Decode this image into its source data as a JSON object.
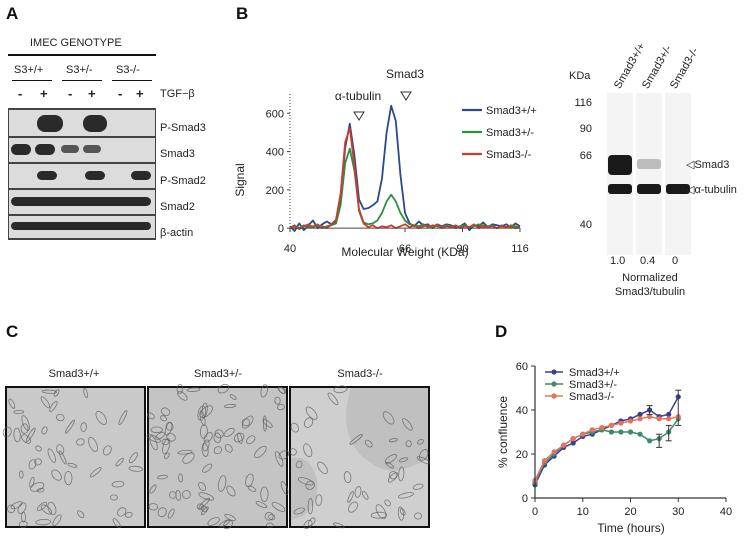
{
  "panels": {
    "a": "A",
    "b": "B",
    "c": "C",
    "d": "D"
  },
  "panel_a": {
    "header": "IMEC GENOTYPE",
    "genotypes": [
      "S3+/+",
      "S3+/-",
      "S3-/-"
    ],
    "treatment_label": "TGF−β",
    "treatment_signs": [
      "-",
      "+",
      "-",
      "+",
      "-",
      "+"
    ],
    "rows": [
      "P-Smad3",
      "Smad3",
      "P-Smad2",
      "Smad2",
      "β-actin"
    ]
  },
  "panel_b_gel": {
    "kda_label": "KDa",
    "markers": [
      "116",
      "90",
      "66",
      "40"
    ],
    "lanes": [
      "Smad3+/+",
      "Smad3+/-",
      "Smad3-/-"
    ],
    "band_labels": [
      "◁Smad3",
      "◁α-tubulin"
    ],
    "ratios": [
      "1.0",
      "0.4",
      "0"
    ],
    "ratio_caption_line1": "Normalized",
    "ratio_caption_line2": "Smad3/tubulin"
  },
  "panel_c": {
    "labels": [
      "Smad3+/+",
      "Smad3+/-",
      "Smad3-/-"
    ]
  },
  "chart_data": [
    {
      "type": "line",
      "ylabel": "Signal",
      "xlabel": "Molecular Weight (KDa)",
      "x_ticks": [
        "40",
        "66",
        "90",
        "116"
      ],
      "y_ticks": [
        "0",
        "200",
        "400",
        "600"
      ],
      "ylim": [
        -20,
        680
      ],
      "annotations": [
        "α-tubulin",
        "Smad3"
      ],
      "legend_position": "top-right",
      "series": [
        {
          "name": "Smad3+/+",
          "color": "#2b4a8c",
          "x": [
            0,
            2,
            4,
            6,
            8,
            10,
            12,
            14,
            16,
            18,
            20,
            22,
            24,
            26,
            28,
            30,
            32,
            34,
            36,
            38,
            40,
            42,
            44,
            46,
            48,
            50,
            52,
            54,
            56,
            58,
            60,
            62,
            64,
            66,
            68,
            70,
            72,
            74,
            76,
            78,
            80,
            82,
            84,
            86,
            88,
            90,
            92,
            94,
            96,
            98,
            100
          ],
          "y": [
            10,
            -15,
            25,
            -10,
            15,
            40,
            0,
            20,
            35,
            20,
            35,
            150,
            420,
            545,
            380,
            150,
            100,
            105,
            120,
            140,
            260,
            500,
            640,
            560,
            280,
            80,
            25,
            10,
            35,
            15,
            20,
            0,
            20,
            10,
            20,
            15,
            5,
            10,
            25,
            -10,
            15,
            10,
            30,
            5,
            20,
            15,
            10,
            20,
            5,
            25,
            10
          ]
        },
        {
          "name": "Smad3+/-",
          "color": "#2f8f3f",
          "x": [
            0,
            2,
            4,
            6,
            8,
            10,
            12,
            14,
            16,
            18,
            20,
            22,
            24,
            26,
            28,
            30,
            32,
            34,
            36,
            38,
            40,
            42,
            44,
            46,
            48,
            50,
            52,
            54,
            56,
            58,
            60,
            62,
            64,
            66,
            68,
            70,
            72,
            74,
            76,
            78,
            80,
            82,
            84,
            86,
            88,
            90,
            92,
            94,
            96,
            98,
            100
          ],
          "y": [
            5,
            10,
            0,
            15,
            5,
            10,
            20,
            0,
            10,
            15,
            25,
            120,
            340,
            415,
            300,
            100,
            30,
            20,
            25,
            40,
            80,
            140,
            175,
            140,
            80,
            40,
            20,
            15,
            10,
            20,
            5,
            15,
            10,
            5,
            15,
            10,
            0,
            10,
            15,
            5,
            10,
            20,
            5,
            10,
            15,
            0,
            10,
            5,
            15,
            10,
            5
          ]
        },
        {
          "name": "Smad3-/-",
          "color": "#d03a2f",
          "x": [
            0,
            2,
            4,
            6,
            8,
            10,
            12,
            14,
            16,
            18,
            20,
            22,
            24,
            26,
            28,
            30,
            32,
            34,
            36,
            38,
            40,
            42,
            44,
            46,
            48,
            50,
            52,
            54,
            56,
            58,
            60,
            62,
            64,
            66,
            68,
            70,
            72,
            74,
            76,
            78,
            80,
            82,
            84,
            86,
            88,
            90,
            92,
            94,
            96,
            98,
            100
          ],
          "y": [
            0,
            15,
            -5,
            10,
            20,
            5,
            15,
            10,
            0,
            20,
            45,
            180,
            450,
            520,
            330,
            90,
            25,
            5,
            15,
            0,
            10,
            5,
            15,
            0,
            10,
            20,
            5,
            15,
            0,
            10,
            15,
            5,
            20,
            0,
            10,
            5,
            15,
            0,
            10,
            5,
            20,
            0,
            15,
            5,
            10,
            0,
            15,
            5,
            10,
            0,
            5
          ]
        }
      ]
    },
    {
      "type": "line",
      "ylabel": "% confluence",
      "xlabel": "Time (hours)",
      "xlim": [
        0,
        40
      ],
      "ylim": [
        0,
        60
      ],
      "x_ticks": [
        "0",
        "10",
        "20",
        "30",
        "40"
      ],
      "y_ticks": [
        "0",
        "20",
        "40",
        "60"
      ],
      "legend_position": "top-left",
      "series": [
        {
          "name": "Smad3+/+",
          "color": "#3b3f8c",
          "x": [
            0,
            2,
            4,
            6,
            8,
            10,
            12,
            14,
            16,
            18,
            20,
            22,
            24,
            26,
            28,
            30
          ],
          "y": [
            6,
            15,
            19,
            23,
            25,
            28,
            29,
            31,
            33,
            35,
            36,
            38,
            40,
            37,
            38,
            46
          ]
        },
        {
          "name": "Smad3+/-",
          "color": "#3d8a6a",
          "x": [
            0,
            2,
            4,
            6,
            8,
            10,
            12,
            14,
            16,
            18,
            20,
            22,
            24,
            26,
            28,
            30
          ],
          "y": [
            7,
            16,
            20,
            24,
            27,
            29,
            30,
            31,
            30,
            30,
            30,
            29,
            26,
            27,
            30,
            36
          ]
        },
        {
          "name": "Smad3-/-",
          "color": "#e5735f",
          "x": [
            0,
            2,
            4,
            6,
            8,
            10,
            12,
            14,
            16,
            18,
            20,
            22,
            24,
            26,
            28,
            30
          ],
          "y": [
            8,
            17,
            21,
            24,
            27,
            29,
            31,
            32,
            33,
            34,
            35,
            36,
            37,
            36,
            36,
            37
          ]
        }
      ]
    }
  ]
}
